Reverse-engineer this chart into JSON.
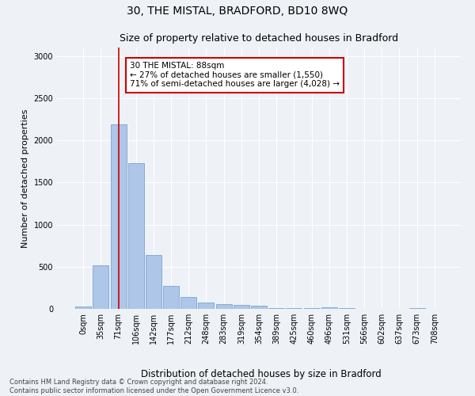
{
  "title": "30, THE MISTAL, BRADFORD, BD10 8WQ",
  "subtitle": "Size of property relative to detached houses in Bradford",
  "xlabel": "Distribution of detached houses by size in Bradford",
  "ylabel": "Number of detached properties",
  "bin_labels": [
    "0sqm",
    "35sqm",
    "71sqm",
    "106sqm",
    "142sqm",
    "177sqm",
    "212sqm",
    "248sqm",
    "283sqm",
    "319sqm",
    "354sqm",
    "389sqm",
    "425sqm",
    "460sqm",
    "496sqm",
    "531sqm",
    "566sqm",
    "602sqm",
    "637sqm",
    "673sqm",
    "708sqm"
  ],
  "bar_heights": [
    25,
    520,
    2185,
    1730,
    635,
    270,
    140,
    75,
    55,
    45,
    35,
    10,
    10,
    5,
    15,
    5,
    2,
    2,
    2,
    5,
    2
  ],
  "bar_color": "#aec6e8",
  "bar_edge_color": "#6699cc",
  "property_bin_index": 2,
  "red_line_color": "#cc0000",
  "annotation_text": "30 THE MISTAL: 88sqm\n← 27% of detached houses are smaller (1,550)\n71% of semi-detached houses are larger (4,028) →",
  "annotation_box_color": "#cc0000",
  "ylim": [
    0,
    3100
  ],
  "footer_text": "Contains HM Land Registry data © Crown copyright and database right 2024.\nContains public sector information licensed under the Open Government Licence v3.0.",
  "background_color": "#eef2f7",
  "grid_color": "#ffffff",
  "title_fontsize": 10,
  "subtitle_fontsize": 9,
  "ylabel_fontsize": 8,
  "xlabel_fontsize": 8.5,
  "tick_fontsize": 7,
  "annotation_fontsize": 7.5,
  "footer_fontsize": 6
}
